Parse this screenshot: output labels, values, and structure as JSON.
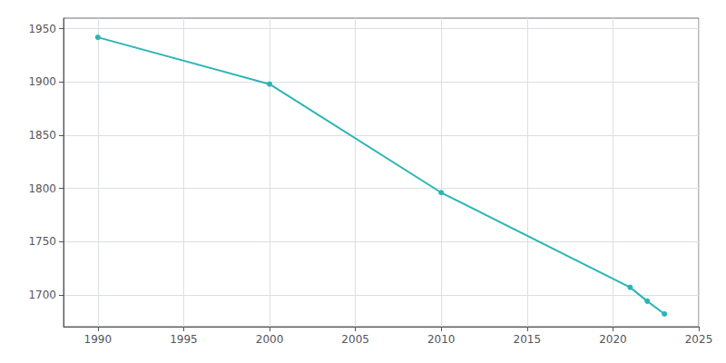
{
  "chart_data": {
    "type": "line",
    "x": [
      1990,
      2000,
      2010,
      2021,
      2022,
      2023
    ],
    "values": [
      1942,
      1898,
      1796,
      1707,
      1694,
      1682
    ],
    "color": "#2ab5b5",
    "marker": "circle",
    "xlim": [
      1988,
      2025
    ],
    "xticks": [
      1990,
      1995,
      2000,
      2005,
      2010,
      2015,
      2020,
      2025
    ],
    "ylim": [
      1670,
      1960
    ],
    "yticks": [
      1700,
      1750,
      1800,
      1850,
      1900,
      1950
    ],
    "grid": true
  }
}
